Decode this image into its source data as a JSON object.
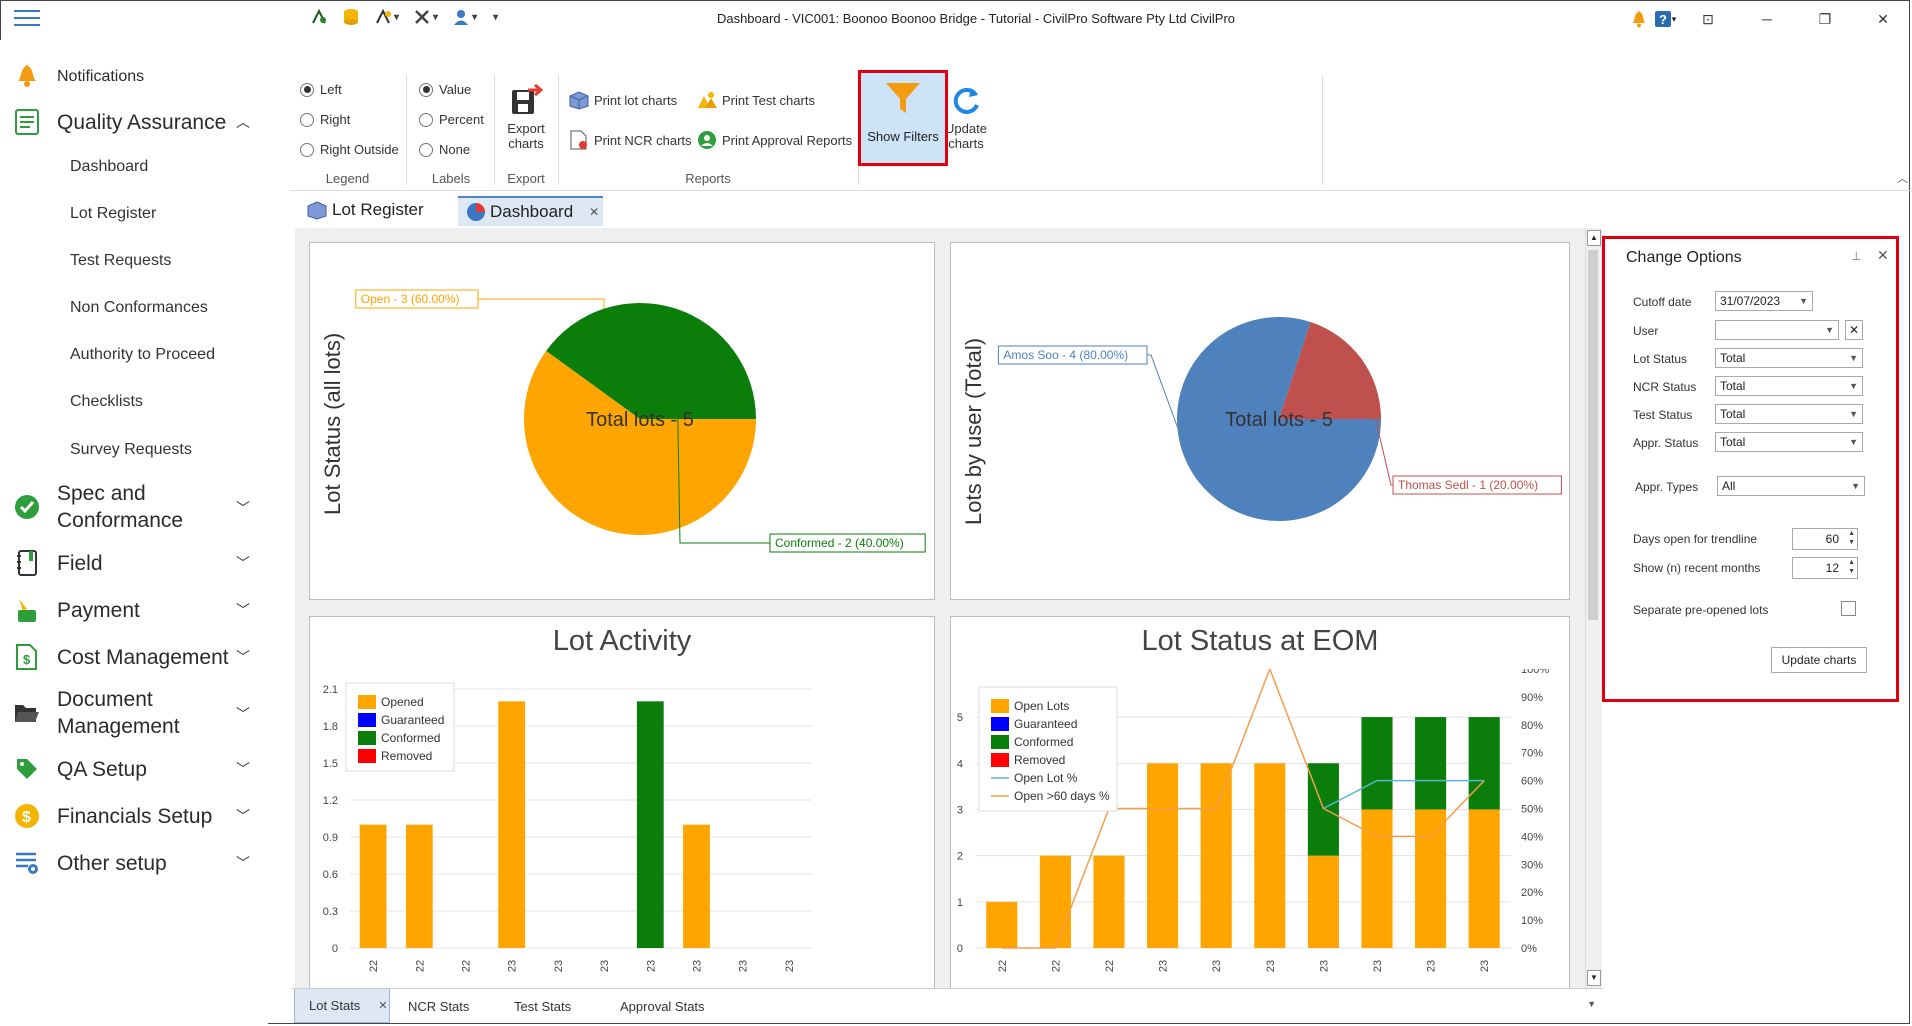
{
  "window": {
    "title": "Dashboard - VIC001: Boonoo Boonoo Bridge - Tutorial - CivilPro Software Pty Ltd CivilPro"
  },
  "sidebar": {
    "notifications": "Notifications",
    "quality_assurance": "Quality Assurance",
    "qa_items": [
      "Dashboard",
      "Lot Register",
      "Test Requests",
      "Non Conformances",
      "Authority to Proceed",
      "Checklists",
      "Survey Requests"
    ],
    "sections": [
      {
        "label": "Spec and",
        "label2": "Conformance"
      },
      {
        "label": "Field"
      },
      {
        "label": "Payment"
      },
      {
        "label": "Cost Management"
      },
      {
        "label": "Document",
        "label2": "Management"
      },
      {
        "label": "QA Setup"
      },
      {
        "label": "Financials Setup"
      },
      {
        "label": "Other setup"
      }
    ]
  },
  "ribbon": {
    "legend": {
      "group": "Legend",
      "options": [
        "Left",
        "Right",
        "Right Outside"
      ],
      "selected": "Left"
    },
    "labels": {
      "group": "Labels",
      "options": [
        "Value",
        "Percent",
        "None"
      ],
      "selected": "Value"
    },
    "export": {
      "group": "Export",
      "button": "Export",
      "button2": "charts"
    },
    "reports": {
      "group": "Reports",
      "print_lot": "Print lot charts",
      "print_test": "Print Test charts",
      "print_ncr": "Print NCR charts",
      "print_approval": "Print Approval Reports"
    },
    "show_filters": "Show Filters",
    "update_charts": "Update",
    "update_charts2": "charts"
  },
  "doc_tabs": [
    "Lot Register",
    "Dashboard"
  ],
  "bottom_tabs": [
    "Lot Stats",
    "NCR Stats",
    "Test Stats",
    "Approval Stats"
  ],
  "options": {
    "title": "Change Options",
    "cutoff_label": "Cutoff date",
    "cutoff_value": "31/07/2023",
    "user_label": "User",
    "user_value": "",
    "lot_status_label": "Lot Status",
    "lot_status_value": "Total",
    "ncr_status_label": "NCR Status",
    "ncr_status_value": "Total",
    "test_status_label": "Test Status",
    "test_status_value": "Total",
    "appr_status_label": "Appr. Status",
    "appr_status_value": "Total",
    "appr_types_label": "Appr. Types",
    "appr_types_value": "All",
    "days_open_label": "Days open for trendline",
    "days_open_value": "60",
    "recent_months_label": "Show (n) recent months",
    "recent_months_value": "12",
    "separate_label": "Separate pre-opened lots",
    "update_button": "Update charts"
  },
  "chart_data": [
    {
      "type": "pie",
      "ylabel": "Lot Status (all lots)",
      "center_label": "Total lots - 5",
      "slices": [
        {
          "label": "Open - 3 (60.00%)",
          "value": 3,
          "color": "#FFA500"
        },
        {
          "label": "Conformed - 2 (40.00%)",
          "value": 2,
          "color": "#0A7D0A"
        }
      ]
    },
    {
      "type": "pie",
      "ylabel": "Lots by user (Total)",
      "center_label": "Total lots - 5",
      "slices": [
        {
          "label": "Amos Soo - 4 (80.00%)",
          "value": 4,
          "color": "#4F81BD"
        },
        {
          "label": "Thomas Sedl - 1 (20.00%)",
          "value": 1,
          "color": "#C0504D"
        }
      ]
    },
    {
      "type": "bar",
      "title": "Lot Activity",
      "categories": [
        "22",
        "22",
        "22",
        "23",
        "23",
        "23",
        "23",
        "23",
        "23",
        "23"
      ],
      "yticks": [
        "0",
        "0.3",
        "0.6",
        "0.9",
        "1.2",
        "1.5",
        "1.8",
        "2.1"
      ],
      "ylim": [
        0,
        2.1
      ],
      "series": [
        {
          "name": "Opened",
          "color": "#FFA500",
          "values": [
            1,
            1,
            0,
            2,
            0,
            0,
            0,
            1,
            0,
            0
          ]
        },
        {
          "name": "Guaranteed",
          "color": "#0000FF",
          "values": [
            0,
            0,
            0,
            0,
            0,
            0,
            0,
            0,
            0,
            0
          ]
        },
        {
          "name": "Conformed",
          "color": "#0A7D0A",
          "values": [
            0,
            0,
            0,
            0,
            0,
            0,
            2,
            0,
            0,
            0
          ]
        },
        {
          "name": "Removed",
          "color": "#FF0000",
          "values": [
            0,
            0,
            0,
            0,
            0,
            0,
            0,
            0,
            0,
            0
          ]
        }
      ]
    },
    {
      "type": "bar",
      "title": "Lot Status at EOM",
      "categories": [
        "22",
        "22",
        "22",
        "23",
        "23",
        "23",
        "23",
        "23",
        "23",
        "23"
      ],
      "yticks": [
        "0",
        "1",
        "2",
        "3",
        "4",
        "5"
      ],
      "ylim": [
        0,
        5.5
      ],
      "y2ticks": [
        "0%",
        "10%",
        "20%",
        "30%",
        "40%",
        "50%",
        "60%",
        "70%",
        "80%",
        "90%",
        "100%"
      ],
      "series": [
        {
          "name": "Open Lots",
          "color": "#FFA500",
          "values": [
            1,
            2,
            2,
            4,
            4,
            4,
            2,
            3,
            3,
            3
          ]
        },
        {
          "name": "Guaranteed",
          "color": "#0000FF",
          "values": [
            0,
            0,
            0,
            0,
            0,
            0,
            0,
            0,
            0,
            0
          ]
        },
        {
          "name": "Conformed",
          "color": "#0A7D0A",
          "values": [
            0,
            0,
            0,
            0,
            0,
            0,
            2,
            2,
            2,
            2
          ]
        },
        {
          "name": "Removed",
          "color": "#FF0000",
          "values": [
            0,
            0,
            0,
            0,
            0,
            0,
            0,
            0,
            0,
            0
          ]
        }
      ],
      "lines": [
        {
          "name": "Open Lot %",
          "color": "#5BB5D5",
          "values": [
            null,
            null,
            null,
            null,
            null,
            null,
            50,
            60,
            60,
            60
          ]
        },
        {
          "name": "Open >60 days %",
          "color": "#F59E4B",
          "values": [
            0,
            0,
            50,
            50,
            50,
            100,
            50,
            40,
            40,
            60
          ]
        }
      ]
    }
  ]
}
